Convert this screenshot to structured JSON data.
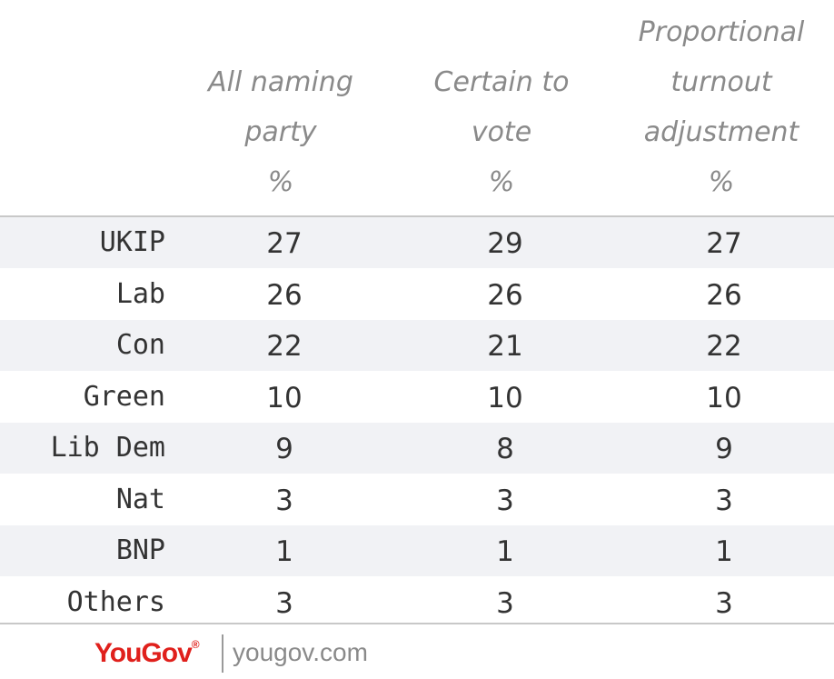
{
  "chart_data": {
    "type": "table",
    "columns": [
      {
        "lines": [
          "All naming",
          "party",
          "%"
        ]
      },
      {
        "lines": [
          "Certain to",
          "vote",
          "%"
        ]
      },
      {
        "lines": [
          "Proportional",
          "turnout",
          "adjustment",
          "%"
        ]
      }
    ],
    "rows": [
      {
        "label": "UKIP",
        "values": [
          "27",
          "29",
          "27"
        ]
      },
      {
        "label": "Lab",
        "values": [
          "26",
          "26",
          "26"
        ]
      },
      {
        "label": "Con",
        "values": [
          "22",
          "21",
          "22"
        ]
      },
      {
        "label": "Green",
        "values": [
          "10",
          "10",
          "10"
        ]
      },
      {
        "label": "Lib Dem",
        "values": [
          "9",
          "8",
          "9"
        ]
      },
      {
        "label": "Nat",
        "values": [
          "3",
          "3",
          "3"
        ]
      },
      {
        "label": "BNP",
        "values": [
          "1",
          "1",
          "1"
        ]
      },
      {
        "label": "Others",
        "values": [
          "3",
          "3",
          "3"
        ]
      }
    ]
  },
  "footer": {
    "logo": "YouGov",
    "logo_mark": "®",
    "site": "yougov.com"
  },
  "colors": {
    "row_shade": "#f1f2f5",
    "header_text": "#8a8a8a",
    "body_text": "#333333",
    "brand_red": "#e0201c"
  }
}
